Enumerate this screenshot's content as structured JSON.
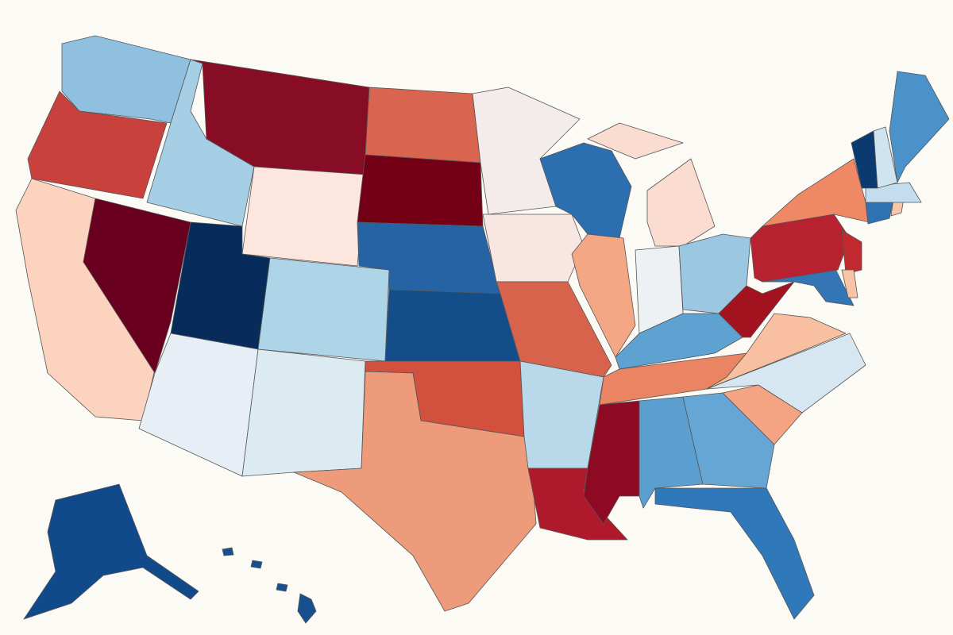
{
  "map": {
    "regions": [
      {
        "color": "#8fc0e0"
      },
      {
        "color": "#c8413c"
      },
      {
        "color": "#fcd3bf"
      },
      {
        "color": "#a6cfe6"
      },
      {
        "color": "#6a0020"
      },
      {
        "color": "#870d24"
      },
      {
        "color": "#fde6dd"
      },
      {
        "color": "#072c5c"
      },
      {
        "color": "#e8eef5"
      },
      {
        "color": "#aed4e8"
      },
      {
        "color": "#dcebf1"
      },
      {
        "color": "#d96550"
      },
      {
        "color": "#740016"
      },
      {
        "color": "#2563a5"
      },
      {
        "color": "#144e8a"
      },
      {
        "color": "#d1503e"
      },
      {
        "color": "#ed9b7a"
      },
      {
        "color": "#f3ecea"
      },
      {
        "color": "#f7e6e2"
      },
      {
        "color": "#d8634c"
      },
      {
        "color": "#b9d8ea"
      },
      {
        "color": "#b0192b"
      },
      {
        "color": "#2b6fb0"
      },
      {
        "color": "#f4a784"
      },
      {
        "color": "#fbdcd0"
      },
      {
        "color": "#eef1f3"
      },
      {
        "color": "#9cc7e2"
      },
      {
        "color": "#5ea2d2"
      },
      {
        "color": "#ea8462"
      },
      {
        "color": "#8d0a22"
      },
      {
        "color": "#5b9fd1"
      },
      {
        "color": "#66a6d4"
      },
      {
        "color": "#2f79bb"
      },
      {
        "color": "#f4a482"
      },
      {
        "color": "#d6e7f1"
      },
      {
        "color": "#f8c0a0"
      },
      {
        "color": "#a2131f"
      },
      {
        "color": "#3375b5"
      },
      {
        "color": "#b82230"
      },
      {
        "color": "#c02a2f"
      },
      {
        "color": "#ee8865"
      },
      {
        "color": "#2e72b3"
      },
      {
        "color": "#f8c6ad"
      },
      {
        "color": "#c3ddee"
      },
      {
        "color": "#0b3a70"
      },
      {
        "color": "#cfe3f0"
      },
      {
        "color": "#4a92c9"
      },
      {
        "color": "#f9c4a6"
      },
      {
        "color": "#104a8a"
      },
      {
        "color": "#16508f"
      }
    ]
  }
}
